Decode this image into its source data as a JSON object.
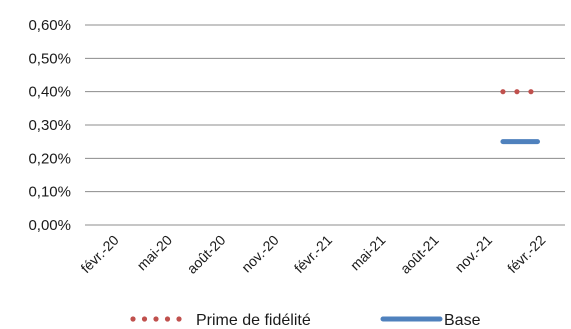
{
  "chart_data": {
    "type": "line",
    "x_categories": [
      "févr.-20",
      "mai-20",
      "août-20",
      "nov.-20",
      "févr.-21",
      "mai-21",
      "août-21",
      "nov.-21",
      "févr.-22"
    ],
    "ylim": [
      0.0,
      0.006
    ],
    "y_ticks": [
      0.0,
      0.001,
      0.002,
      0.003,
      0.004,
      0.005,
      0.006
    ],
    "y_tick_labels": [
      "0,00%",
      "0,10%",
      "0,20%",
      "0,30%",
      "0,40%",
      "0,50%",
      "0,60%"
    ],
    "grid": "horizontal",
    "legend_position": "bottom",
    "series": [
      {
        "name": "Prime de fidélité",
        "style": "dotted",
        "color": "#c0504d",
        "x": [
          "2022-01-15",
          "2022-03-15"
        ],
        "values": [
          0.004,
          0.004
        ]
      },
      {
        "name": "Base",
        "style": "solid",
        "color": "#4f81bd",
        "x": [
          "2022-01-15",
          "2022-03-15"
        ],
        "values": [
          0.0025,
          0.0025
        ]
      }
    ]
  }
}
